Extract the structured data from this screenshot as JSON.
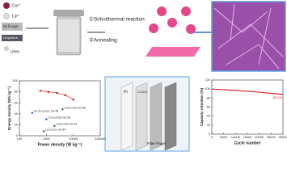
{
  "diagram": {
    "reagents": [
      "Co²⁺",
      "La³⁺",
      "Ni Foam",
      "Graphene",
      "Urea"
    ],
    "steps": [
      "①Solvothermal reaction",
      "②Annealing"
    ],
    "device_label": "Filter Paper",
    "device_layers": [
      "PI",
      "LCO/G"
    ]
  },
  "chart_data": [
    {
      "type": "scatter",
      "xlabel": "Power density (W kg⁻¹)",
      "ylabel": "Energy density (Wh kg⁻¹)",
      "log_x": true,
      "xlim": [
        100,
        100000
      ],
      "xticks": [
        100,
        1000,
        10000,
        100000
      ],
      "ylim": [
        0,
        100
      ],
      "yticks": [
        0,
        20,
        40,
        60,
        80,
        100
      ],
      "series": [
        {
          "color": "#d62728",
          "x": [
            600,
            1200,
            2500,
            5000,
            10000
          ],
          "values": [
            82,
            80,
            78,
            74,
            66
          ]
        }
      ],
      "annotations": [
        {
          "x": 300,
          "y": 42,
          "label": "Co₃O₄/La₂O₃ ref.45"
        },
        {
          "x": 4000,
          "y": 48,
          "label": "Co₃O₄/GO ref.46"
        },
        {
          "x": 1000,
          "y": 30,
          "label": "Co₃O₄/rGO ref.38"
        },
        {
          "x": 2000,
          "y": 18,
          "label": "Co₃O₄/AC ref.42"
        },
        {
          "x": 800,
          "y": 8,
          "label": "La-Co₃O₄ ref.44"
        }
      ],
      "annotation_color": "#1f4fbf"
    },
    {
      "type": "line",
      "xlabel": "Cycle number",
      "ylabel": "Capacity retention (%)",
      "xlim": [
        0,
        30000
      ],
      "xticks": [
        0,
        5000,
        10000,
        15000,
        20000,
        25000,
        30000
      ],
      "ylim": [
        0,
        120
      ],
      "yticks": [
        0,
        20,
        40,
        60,
        80,
        100,
        120
      ],
      "x": [
        0,
        5000,
        10000,
        15000,
        20000,
        25000,
        30000
      ],
      "series": [
        {
          "color": "#d62728",
          "values": [
            100,
            98.5,
            97,
            95,
            93,
            90.5,
            88.2
          ],
          "value_labels": [
            null,
            null,
            null,
            null,
            null,
            null,
            "88.2%"
          ]
        }
      ]
    }
  ]
}
